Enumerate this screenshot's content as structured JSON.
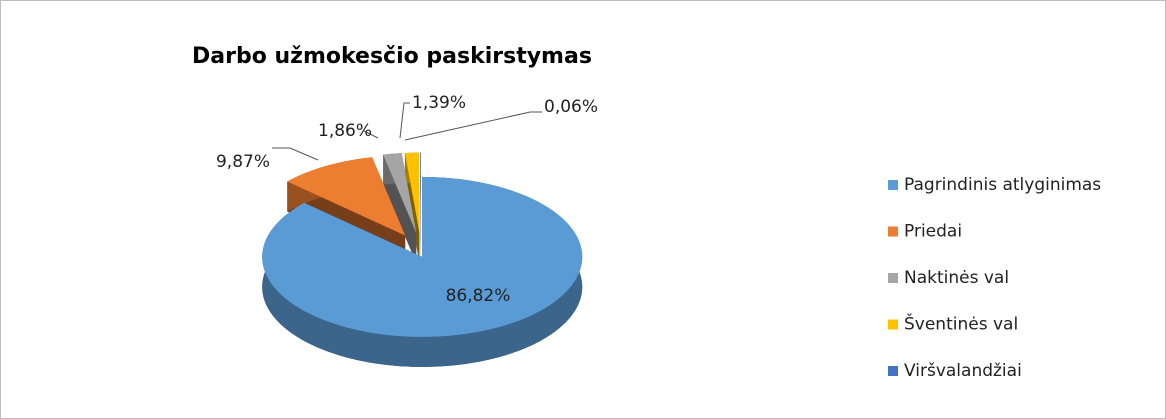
{
  "chart_data": {
    "type": "pie3d",
    "title": "Darbo užmokesčio paskirstymas",
    "categories": [
      "Pagrindinis atlyginimas",
      "Priedai",
      "Naktinės val",
      "Šventinės val",
      "Viršvalandžiai"
    ],
    "values": [
      86.82,
      9.87,
      1.86,
      1.39,
      0.06
    ],
    "value_labels": [
      "86,82%",
      "9,87%",
      "1,86%",
      "1,39%",
      "0,06%"
    ],
    "colors": [
      "#5b9bd5",
      "#ed7d31",
      "#a5a5a5",
      "#ffc000",
      "#4472c4"
    ],
    "legend": "right"
  }
}
